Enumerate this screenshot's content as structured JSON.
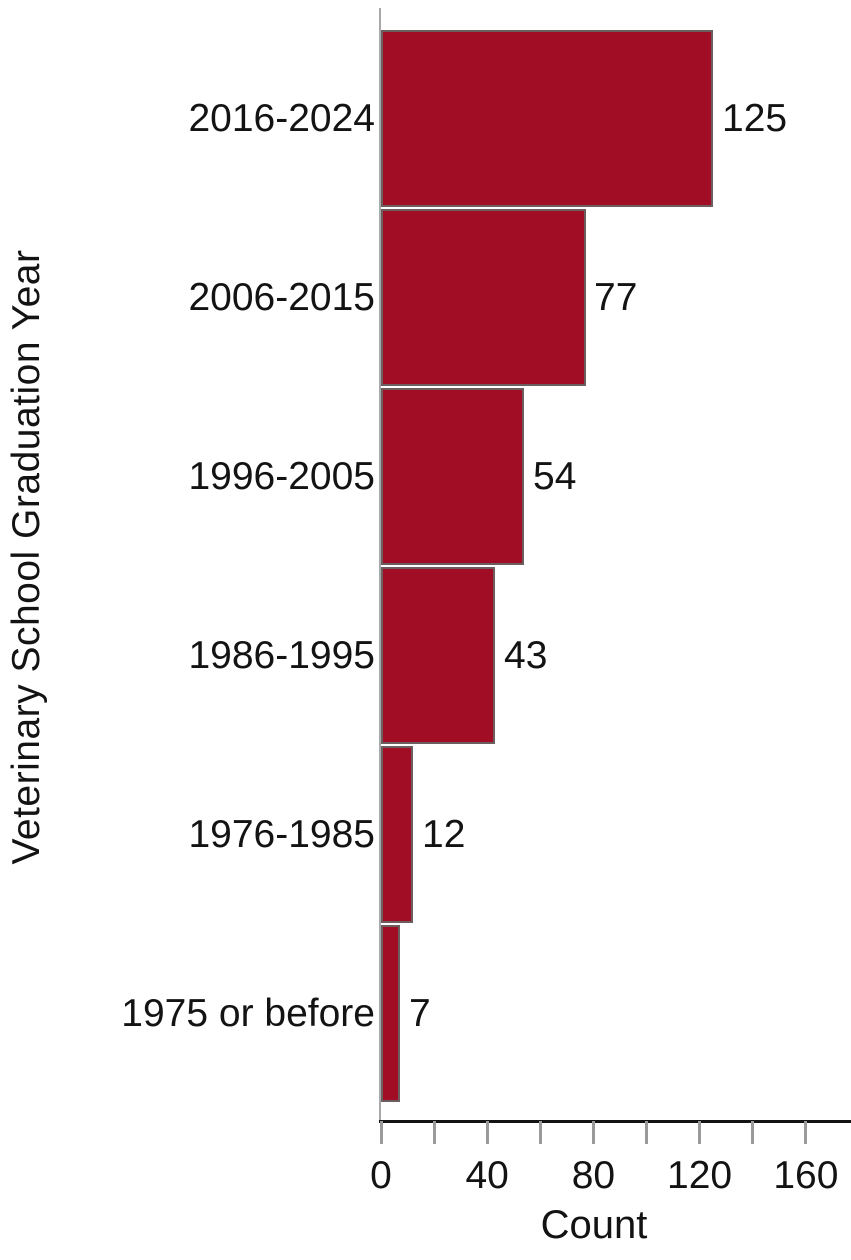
{
  "chart_data": {
    "type": "bar",
    "orientation": "horizontal",
    "categories": [
      "2016-2024",
      "2006-2015",
      "1996-2005",
      "1986-1995",
      "1976-1985",
      "1975 or before"
    ],
    "values": [
      125,
      77,
      54,
      43,
      12,
      7
    ],
    "data_labels": [
      "125",
      "77",
      "54",
      "43",
      "12",
      "7"
    ],
    "xlabel": "Count",
    "ylabel": "Veterinary School Graduation Year",
    "xlim": [
      0,
      177
    ],
    "xticks_all": [
      0,
      20,
      40,
      60,
      80,
      100,
      120,
      140,
      160
    ],
    "xticks_labeled": [
      0,
      40,
      80,
      120,
      160
    ],
    "grid": "off",
    "legend": "none",
    "bar_fill_color": "#A20D26",
    "bar_border_color": "#6C5E5E",
    "axis_line_color": "#131313",
    "y_axis_line_color": "#a8a8a8",
    "tick_color": "#9a9a9a",
    "text_color": "#131313"
  }
}
